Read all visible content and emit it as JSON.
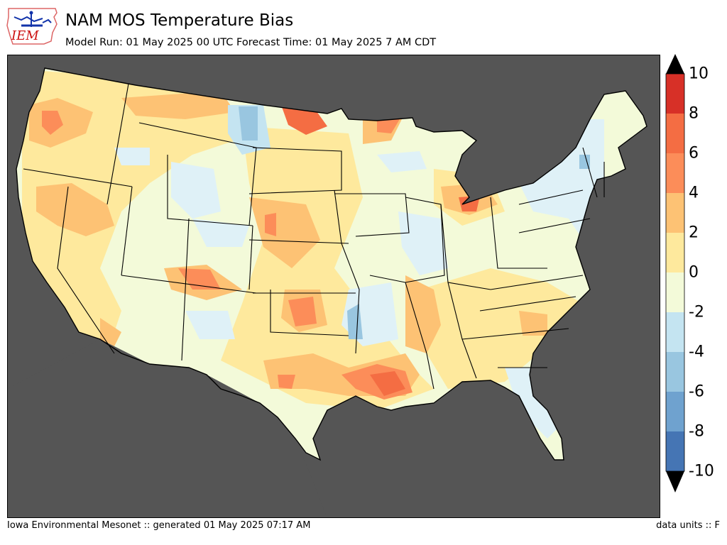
{
  "header": {
    "title": "NAM MOS Temperature Bias",
    "subtitle": "Model Run: 01 May 2025 00 UTC Forecast Time: 01 May 2025 7 AM CDT",
    "logo_text": "IEM"
  },
  "footer": {
    "left": "Iowa Environmental Mesonet :: generated 01 May 2025 07:17 AM",
    "right": "data units :: F"
  },
  "colorbar": {
    "labels": [
      "10",
      "8",
      "6",
      "4",
      "2",
      "0",
      "-2",
      "-4",
      "-6",
      "-8",
      "-10"
    ],
    "colors": [
      "#d73027",
      "#f46d43",
      "#fc8d59",
      "#fdc274",
      "#fee99d",
      "#f3fad9",
      "#dff1f7",
      "#c4e4f1",
      "#99c6e0",
      "#6fa2cf",
      "#4575b4"
    ],
    "extend_high_color": "#000000",
    "extend_low_color": "#000000"
  },
  "map": {
    "ocean_land_outside_color": "#555555",
    "border_color": "#000000"
  }
}
